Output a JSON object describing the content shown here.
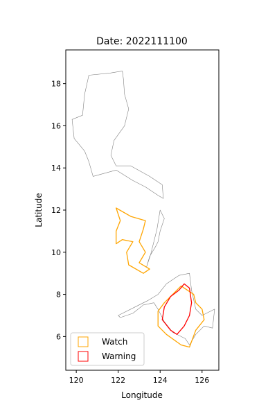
{
  "figure": {
    "title": "Date: 2022111100"
  },
  "chart_data": {
    "type": "map",
    "title": "Date: 2022111100",
    "xlabel": "Longitude",
    "ylabel": "Latitude",
    "xlim": [
      119.5,
      126.8
    ],
    "ylim": [
      4.4,
      19.6
    ],
    "xticks": [
      120,
      122,
      124,
      126
    ],
    "yticks": [
      6,
      8,
      10,
      12,
      14,
      16,
      18
    ],
    "grid": false,
    "legend_position": "lower-left",
    "legend": [
      {
        "label": "Watch",
        "color": "#ffa500"
      },
      {
        "label": "Warning",
        "color": "#ff0000"
      }
    ],
    "colors": {
      "coastline": "#808080",
      "watch": "#ffa500",
      "warning": "#ff0000"
    },
    "regions": [
      {
        "category": "Coastline",
        "color": "#808080",
        "coords": [
          [
            121.6,
            18.5
          ],
          [
            122.2,
            18.6
          ],
          [
            122.25,
            18.2
          ],
          [
            122.3,
            17.5
          ],
          [
            122.5,
            16.8
          ],
          [
            122.3,
            16.0
          ],
          [
            121.8,
            15.3
          ],
          [
            121.65,
            14.6
          ],
          [
            121.9,
            14.1
          ],
          [
            122.6,
            14.1
          ],
          [
            123.5,
            13.6
          ],
          [
            124.1,
            13.2
          ],
          [
            124.15,
            12.55
          ],
          [
            123.9,
            12.7
          ],
          [
            123.3,
            13.1
          ],
          [
            122.7,
            13.4
          ],
          [
            121.9,
            13.9
          ],
          [
            120.8,
            13.6
          ],
          [
            120.6,
            14.3
          ],
          [
            120.4,
            14.8
          ],
          [
            119.9,
            15.4
          ],
          [
            119.8,
            16.3
          ],
          [
            120.3,
            16.5
          ],
          [
            120.4,
            17.5
          ],
          [
            120.6,
            18.4
          ],
          [
            121.6,
            18.5
          ]
        ]
      },
      {
        "category": "Coastline",
        "color": "#808080",
        "coords": [
          [
            124.0,
            12.0
          ],
          [
            124.2,
            11.6
          ],
          [
            124.0,
            11.0
          ],
          [
            123.9,
            10.5
          ],
          [
            123.8,
            10.3
          ],
          [
            123.5,
            9.8
          ],
          [
            123.35,
            9.3
          ],
          [
            123.55,
            9.9
          ],
          [
            123.7,
            10.5
          ],
          [
            123.85,
            11.1
          ],
          [
            124.0,
            12.0
          ]
        ]
      },
      {
        "category": "Coastline",
        "color": "#808080",
        "coords": [
          [
            122.0,
            7.0
          ],
          [
            122.8,
            7.4
          ],
          [
            123.4,
            7.7
          ],
          [
            123.9,
            8.0
          ],
          [
            124.3,
            8.5
          ],
          [
            124.9,
            8.9
          ],
          [
            125.4,
            9.0
          ],
          [
            125.5,
            8.2
          ],
          [
            125.7,
            7.3
          ],
          [
            126.0,
            7.0
          ],
          [
            126.6,
            7.3
          ],
          [
            126.5,
            6.4
          ],
          [
            126.1,
            6.5
          ],
          [
            125.7,
            6.1
          ],
          [
            125.4,
            5.6
          ],
          [
            125.2,
            5.9
          ],
          [
            124.6,
            6.2
          ],
          [
            124.2,
            6.7
          ],
          [
            123.9,
            7.3
          ],
          [
            123.7,
            7.6
          ],
          [
            123.2,
            7.5
          ],
          [
            122.7,
            7.1
          ],
          [
            122.1,
            6.9
          ],
          [
            122.0,
            7.0
          ]
        ]
      },
      {
        "category": "Watch",
        "color": "#ffa500",
        "coords": [
          [
            121.9,
            12.1
          ],
          [
            122.6,
            11.7
          ],
          [
            123.3,
            11.5
          ],
          [
            123.2,
            11.1
          ],
          [
            123.0,
            10.5
          ],
          [
            123.3,
            10.0
          ],
          [
            123.0,
            9.5
          ],
          [
            123.5,
            9.2
          ],
          [
            123.2,
            9.0
          ],
          [
            122.5,
            9.4
          ],
          [
            122.4,
            10.0
          ],
          [
            122.7,
            10.5
          ],
          [
            122.2,
            10.6
          ],
          [
            121.9,
            10.4
          ],
          [
            121.9,
            11.0
          ],
          [
            122.1,
            11.5
          ],
          [
            121.9,
            12.1
          ]
        ]
      },
      {
        "category": "Watch",
        "color": "#ffa500",
        "coords": [
          [
            125.0,
            8.4
          ],
          [
            125.6,
            8.0
          ],
          [
            125.7,
            7.6
          ],
          [
            126.0,
            7.3
          ],
          [
            126.1,
            6.8
          ],
          [
            125.7,
            6.3
          ],
          [
            125.4,
            5.5
          ],
          [
            125.0,
            5.6
          ],
          [
            124.3,
            6.1
          ],
          [
            123.9,
            6.5
          ],
          [
            123.9,
            7.2
          ],
          [
            124.2,
            7.6
          ],
          [
            124.6,
            8.0
          ],
          [
            125.0,
            8.4
          ]
        ]
      },
      {
        "category": "Warning",
        "color": "#ff0000",
        "coords": [
          [
            125.15,
            8.5
          ],
          [
            125.4,
            8.3
          ],
          [
            125.5,
            7.6
          ],
          [
            125.4,
            7.0
          ],
          [
            125.15,
            6.5
          ],
          [
            124.8,
            6.1
          ],
          [
            124.5,
            6.3
          ],
          [
            124.1,
            6.8
          ],
          [
            124.2,
            7.4
          ],
          [
            124.5,
            7.9
          ],
          [
            124.9,
            8.2
          ],
          [
            125.15,
            8.5
          ]
        ]
      }
    ]
  }
}
